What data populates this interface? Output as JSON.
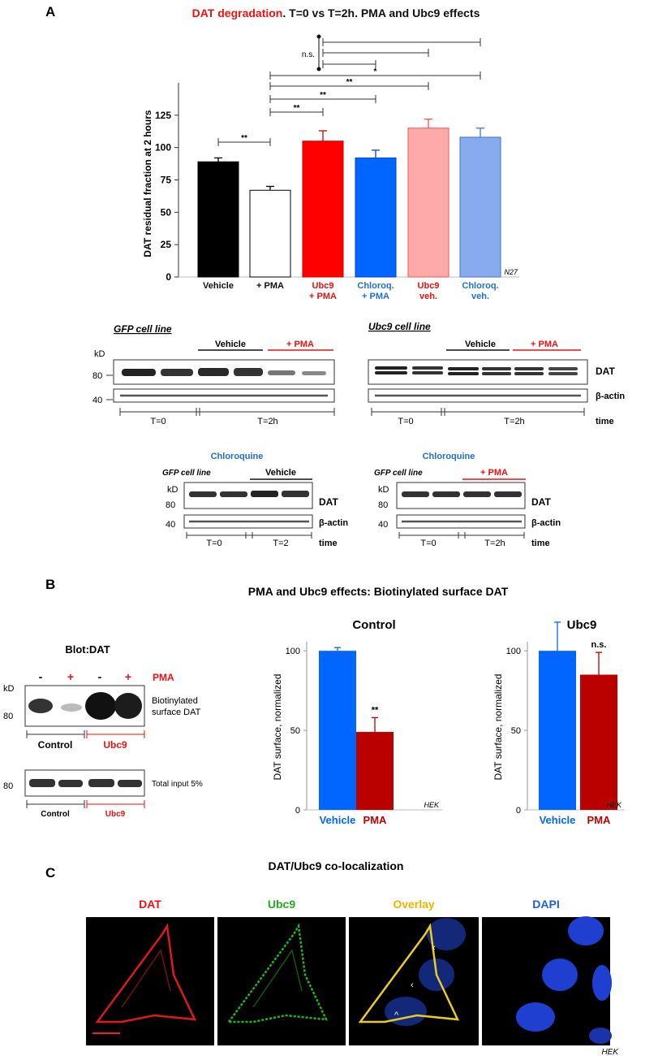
{
  "panelA": {
    "label": "A",
    "title_red": "DAT degradation",
    "title_rest": ". T=0 vs T=2h. PMA and Ubc9 effects",
    "footnote": "N27",
    "chart_data": {
      "type": "bar",
      "ylabel": "DAT residual fraction at 2 hours",
      "ylim": [
        0,
        150
      ],
      "yticks": [
        "0",
        "25",
        "50",
        "75",
        "100",
        "125"
      ],
      "categories": [
        {
          "l1": "Vehicle",
          "l2": "",
          "color": "#111111"
        },
        {
          "l1": "+ PMA",
          "l2": "",
          "color": "#111111"
        },
        {
          "l1": "Ubc9",
          "l2": "+ PMA",
          "color": "#ee1111"
        },
        {
          "l1": "Chloroq.",
          "l2": "+ PMA",
          "color": "#1f6fd6"
        },
        {
          "l1": "Ubc9",
          "l2": "veh.",
          "color": "#ee1111"
        },
        {
          "l1": "Chloroq.",
          "l2": "veh.",
          "color": "#1f6fd6"
        }
      ],
      "values": [
        89,
        67,
        105,
        92,
        115,
        108
      ],
      "errors": [
        3,
        3,
        8,
        6,
        7,
        7
      ],
      "fills": [
        "#000000",
        "#ffffff",
        "#ff0000",
        "#0066ff",
        "#ffaaaa",
        "#88aaee"
      ],
      "strokes": [
        "#000000",
        "#000000",
        "#cc0000",
        "#0044cc",
        "#ee5555",
        "#4477cc"
      ],
      "significance": [
        {
          "from": 0,
          "to": 1,
          "label": "**"
        },
        {
          "from": 1,
          "to": 2,
          "label": "**"
        },
        {
          "from": 1,
          "to": 3,
          "label": "**"
        },
        {
          "from": 1,
          "to": 4,
          "label": "**"
        },
        {
          "from": 1,
          "to": 5,
          "label": "*"
        },
        {
          "from": 2,
          "to": 3,
          "label": ""
        },
        {
          "from": 2,
          "to": 4,
          "label": ""
        },
        {
          "from": 2,
          "to": 5,
          "label": ""
        }
      ],
      "ns_label": "n.s."
    },
    "blots_top": {
      "left_title": "GFP cell line",
      "right_title": "Ubc9 cell line",
      "vehicle": "Vehicle",
      "pma": "+ PMA",
      "kd": "kD",
      "kd80": "80",
      "kd40": "40",
      "dat": "DAT",
      "actin": "β-actin",
      "t0": "T=0",
      "t2h": "T=2h",
      "time": "time"
    },
    "blots_chloro": {
      "title": "Chloroquine",
      "cell_line": "GFP cell line",
      "vehicle": "Vehicle",
      "pma": "+ PMA",
      "kd": "kD",
      "kd80": "80",
      "kd40": "40",
      "dat": "DAT",
      "actin": "β-actin",
      "t0": "T=0",
      "t2": "T=2",
      "t2h": "T=2h",
      "time": "time"
    }
  },
  "panelB": {
    "label": "B",
    "title": "PMA and Ubc9 effects: Biotinylated surface DAT",
    "blot_title": "Blot:DAT",
    "minus": "-",
    "plus": "+",
    "pma": "PMA",
    "kd": "kD",
    "kd80": "80",
    "biot_line1": "Biotinylated",
    "biot_line2": "surface DAT",
    "total_input": "Total input 5%",
    "control": "Control",
    "ubc9": "Ubc9",
    "chart_data": [
      {
        "type": "bar",
        "title": "Control",
        "ylabel": "DAT surface, normalized",
        "ylim": [
          0,
          120
        ],
        "yticks": [
          "0",
          "50",
          "100"
        ],
        "categories": [
          "Vehicle",
          "PMA"
        ],
        "values": [
          100,
          49
        ],
        "errors": [
          2,
          9
        ],
        "annotations": [
          "",
          "**"
        ],
        "footnote": "HEK"
      },
      {
        "type": "bar",
        "title": "Ubc9",
        "ylabel": "DAT surface, normalized",
        "ylim": [
          0,
          120
        ],
        "yticks": [
          "0",
          "50",
          "100"
        ],
        "categories": [
          "Vehicle",
          "PMA"
        ],
        "values": [
          100,
          85
        ],
        "errors": [
          18,
          14
        ],
        "annotations": [
          "",
          "n.s."
        ],
        "footnote": "HEK"
      }
    ],
    "colors": {
      "vehicle": "#0066ff",
      "pma": "#bb0000"
    }
  },
  "panelC": {
    "label": "C",
    "title": "DAT/Ubc9 co-localization",
    "images": [
      {
        "label": "DAT",
        "color": "#ee1111"
      },
      {
        "label": "Ubc9",
        "color": "#22aa22"
      },
      {
        "label": "Overlay",
        "color": "#f0b400"
      },
      {
        "label": "DAPI",
        "color": "#1f5fd6"
      }
    ],
    "footnote": "HEK"
  }
}
